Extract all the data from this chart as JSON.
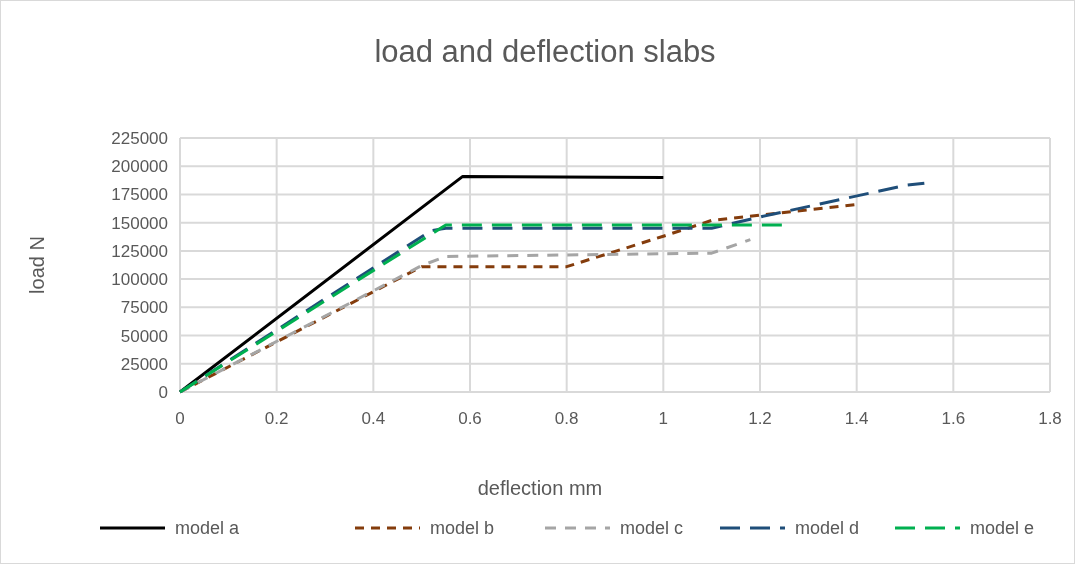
{
  "chart_data": {
    "type": "line",
    "title": "load and deflection slabs",
    "xlabel": "deflection mm",
    "ylabel": "load N",
    "xlim": [
      0,
      1.8
    ],
    "xticks": [
      0,
      0.2,
      0.4,
      0.6,
      0.8,
      1,
      1.2,
      1.4,
      1.6,
      1.8
    ],
    "ylim": [
      0,
      225000
    ],
    "yticks": [
      0,
      25000,
      50000,
      75000,
      100000,
      125000,
      150000,
      175000,
      200000,
      225000
    ],
    "grid": true,
    "legend": "bottom",
    "series": [
      {
        "name": "model a",
        "color": "#000000",
        "line_style": "solid",
        "x": [
          0,
          0.585,
          1
        ],
        "values": [
          0,
          191000,
          190000
        ]
      },
      {
        "name": "model b",
        "color": "#843c0c",
        "line_style": "dashed",
        "x": [
          0,
          0.5,
          0.8,
          1,
          1.1,
          1.4
        ],
        "values": [
          0,
          111000,
          111000,
          138000,
          152000,
          166000
        ]
      },
      {
        "name": "model c",
        "color": "#a5a5a5",
        "line_style": "dashed",
        "x": [
          0,
          0.5,
          0.55,
          1.1,
          1.18
        ],
        "values": [
          0,
          112000,
          120000,
          123000,
          135000
        ]
      },
      {
        "name": "model d",
        "color": "#1f4e79",
        "line_style": "dashed",
        "x": [
          0,
          0.52,
          0.55,
          1.1,
          1.2,
          1.5,
          1.54
        ],
        "values": [
          0,
          143000,
          145000,
          145000,
          155000,
          183000,
          185000
        ]
      },
      {
        "name": "model e",
        "color": "#00b050",
        "line_style": "dashed",
        "x": [
          0,
          0.55,
          1.25
        ],
        "values": [
          0,
          148000,
          148000
        ]
      }
    ]
  }
}
